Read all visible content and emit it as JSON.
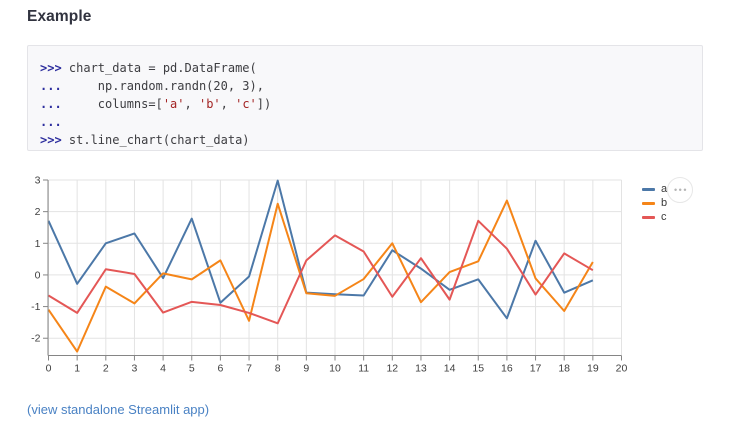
{
  "page": {
    "heading": "Example",
    "footer_link": "(view standalone Streamlit app)"
  },
  "colors": {
    "series_a": "#4c78a8",
    "series_b": "#f58518",
    "series_c": "#e45756",
    "link": "#4a82c4",
    "prompt": "#2d2e9e",
    "string": "#a32424",
    "code_text": "#3d3d41",
    "grid": "#e3e3e3",
    "axis": "#858585"
  },
  "code_block": {
    "lines": [
      {
        "tokens": [
          {
            "t": "p",
            "v": ">>> "
          },
          {
            "t": "c",
            "v": "chart_data = pd.DataFrame("
          }
        ]
      },
      {
        "tokens": [
          {
            "t": "p",
            "v": "... "
          },
          {
            "t": "c",
            "v": "    np.random.randn(20, 3),"
          }
        ]
      },
      {
        "tokens": [
          {
            "t": "p",
            "v": "... "
          },
          {
            "t": "c",
            "v": "    columns=["
          },
          {
            "t": "s",
            "v": "'a'"
          },
          {
            "t": "c",
            "v": ", "
          },
          {
            "t": "s",
            "v": "'b'"
          },
          {
            "t": "c",
            "v": ", "
          },
          {
            "t": "s",
            "v": "'c'"
          },
          {
            "t": "c",
            "v": "])"
          }
        ]
      },
      {
        "tokens": [
          {
            "t": "p",
            "v": "..."
          }
        ]
      },
      {
        "tokens": [
          {
            "t": "p",
            "v": ">>> "
          },
          {
            "t": "c",
            "v": "st.line_chart(chart_data)"
          }
        ]
      }
    ]
  },
  "chart": {
    "menu_icon": "•••"
  },
  "chart_data": {
    "type": "line",
    "title": "",
    "xlabel": "",
    "ylabel": "",
    "x": [
      0,
      1,
      2,
      3,
      4,
      5,
      6,
      7,
      8,
      9,
      10,
      11,
      12,
      13,
      14,
      15,
      16,
      17,
      18,
      19
    ],
    "series": [
      {
        "name": "a",
        "color": "#4c78a8",
        "values": [
          1.71,
          -0.28,
          1.0,
          1.31,
          -0.1,
          1.78,
          -0.88,
          -0.05,
          2.98,
          -0.56,
          -0.61,
          -0.65,
          0.78,
          0.2,
          -0.47,
          -0.14,
          -1.37,
          1.08,
          -0.56,
          -0.17
        ]
      },
      {
        "name": "b",
        "color": "#f58518",
        "values": [
          -1.1,
          -2.42,
          -0.37,
          -0.9,
          0.05,
          -0.14,
          0.46,
          -1.45,
          2.25,
          -0.58,
          -0.66,
          -0.13,
          1.0,
          -0.86,
          0.09,
          0.43,
          2.35,
          -0.11,
          -1.14,
          0.41
        ]
      },
      {
        "name": "c",
        "color": "#e45756",
        "values": [
          -0.65,
          -1.2,
          0.18,
          0.03,
          -1.19,
          -0.85,
          -0.95,
          -1.2,
          -1.53,
          0.46,
          1.25,
          0.74,
          -0.69,
          0.53,
          -0.78,
          1.71,
          0.83,
          -0.62,
          0.68,
          0.15
        ]
      }
    ],
    "x_ticks": [
      0,
      1,
      2,
      3,
      4,
      5,
      6,
      7,
      8,
      9,
      10,
      11,
      12,
      13,
      14,
      15,
      16,
      17,
      18,
      19,
      20
    ],
    "y_ticks": [
      -2,
      -1,
      0,
      1,
      2,
      3
    ],
    "xlim": [
      0,
      20
    ],
    "ylim": [
      -2.53,
      3
    ],
    "grid": true,
    "legend_position": "right"
  }
}
